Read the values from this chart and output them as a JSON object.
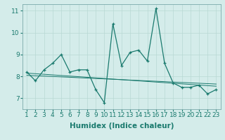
{
  "x": [
    1,
    2,
    3,
    4,
    5,
    6,
    7,
    8,
    9,
    10,
    11,
    12,
    13,
    14,
    15,
    16,
    17,
    18,
    19,
    20,
    21,
    22,
    23
  ],
  "y_main": [
    8.2,
    7.8,
    8.3,
    8.6,
    9.0,
    8.2,
    8.3,
    8.3,
    7.4,
    6.8,
    10.4,
    8.5,
    9.1,
    9.2,
    8.7,
    11.1,
    8.6,
    7.7,
    7.5,
    7.5,
    7.6,
    7.2,
    7.4
  ],
  "trend1_x": [
    1,
    23
  ],
  "trend1_y": [
    8.15,
    7.55
  ],
  "trend2_x": [
    1,
    23
  ],
  "trend2_y": [
    8.05,
    7.65
  ],
  "xlabel": "Humidex (Indice chaleur)",
  "ylim": [
    6.5,
    11.3
  ],
  "xlim": [
    0.5,
    23.5
  ],
  "yticks": [
    7,
    8,
    9,
    10,
    11
  ],
  "xticks": [
    1,
    2,
    3,
    4,
    5,
    6,
    7,
    8,
    9,
    10,
    11,
    12,
    13,
    14,
    15,
    16,
    17,
    18,
    19,
    20,
    21,
    22,
    23
  ],
  "bg_color": "#d4ecea",
  "line_color": "#1a7a6e",
  "grid_color": "#b8d8d4",
  "tick_label_fontsize": 6.5,
  "xlabel_fontsize": 7.5
}
